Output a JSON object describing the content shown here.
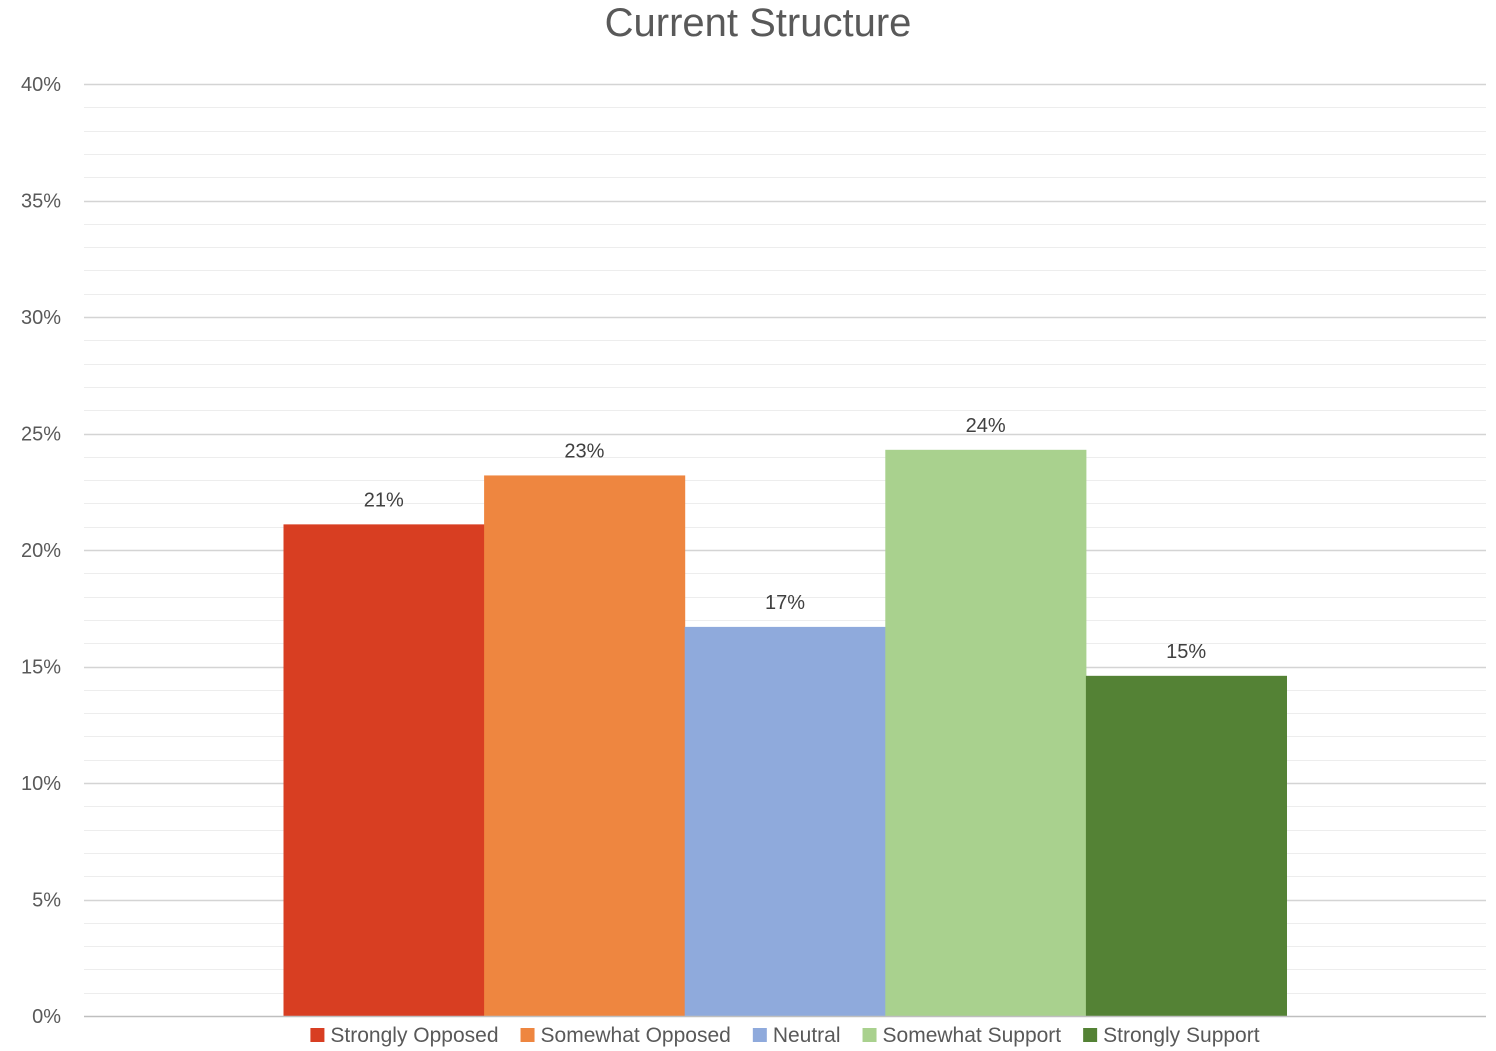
{
  "chart_data": {
    "type": "bar",
    "title": "Current Structure",
    "xlabel": "",
    "ylabel": "",
    "ylim": [
      0,
      0.4
    ],
    "major_step": 0.05,
    "minor_step": 0.01,
    "y_tick_labels": [
      "0%",
      "5%",
      "10%",
      "15%",
      "20%",
      "25%",
      "30%",
      "35%",
      "40%"
    ],
    "grid": true,
    "legend_position": "bottom",
    "series": [
      {
        "name": "Strongly Opposed",
        "value": 0.211,
        "label": "21%",
        "color": "#D83E22"
      },
      {
        "name": "Somewhat Opposed",
        "value": 0.232,
        "label": "23%",
        "color": "#EE8640"
      },
      {
        "name": "Neutral",
        "value": 0.167,
        "label": "17%",
        "color": "#8FAADC"
      },
      {
        "name": "Somewhat Support",
        "value": 0.243,
        "label": "24%",
        "color": "#A9D18E"
      },
      {
        "name": "Strongly Support",
        "value": 0.146,
        "label": "15%",
        "color": "#548235"
      }
    ]
  }
}
